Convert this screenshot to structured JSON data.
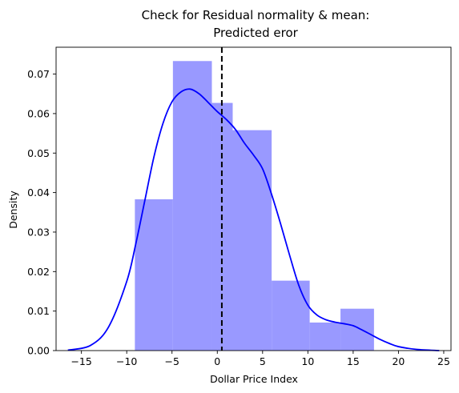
{
  "chart_data": {
    "type": "bar",
    "title": "Check for Residual normality & mean:",
    "subtitle": "Predicted eror",
    "xlabel": "Dollar Price Index",
    "ylabel": "Density",
    "xlim": [
      -17.8,
      25.8
    ],
    "ylim": [
      0,
      0.0768
    ],
    "xticks": [
      -15,
      -10,
      -5,
      0,
      5,
      10,
      15,
      20,
      25
    ],
    "xtick_labels": [
      "−15",
      "−10",
      "−5",
      "0",
      "5",
      "10",
      "15",
      "20",
      "25"
    ],
    "yticks": [
      0.0,
      0.01,
      0.02,
      0.03,
      0.04,
      0.05,
      0.06,
      0.07
    ],
    "ytick_labels": [
      "0.00",
      "0.01",
      "0.02",
      "0.03",
      "0.04",
      "0.05",
      "0.06",
      "0.07"
    ],
    "histogram": {
      "color": "#9999ff",
      "bins": [
        {
          "start": -9.1,
          "end": -4.9,
          "density": 0.0383
        },
        {
          "start": -4.9,
          "end": -0.6,
          "density": 0.0733
        },
        {
          "start": -0.6,
          "end": 1.7,
          "density": 0.0627
        },
        {
          "start": 1.7,
          "end": 6.0,
          "density": 0.0558
        },
        {
          "start": 6.0,
          "end": 10.2,
          "density": 0.0177
        },
        {
          "start": 10.2,
          "end": 13.6,
          "density": 0.0071
        },
        {
          "start": 13.6,
          "end": 17.3,
          "density": 0.0106
        }
      ]
    },
    "kde": {
      "color": "#0000ff",
      "x": [
        -16.5,
        -14.0,
        -12.0,
        -10.0,
        -9.0,
        -8.0,
        -7.0,
        -6.0,
        -5.0,
        -4.0,
        -3.0,
        -2.0,
        -1.0,
        0.0,
        1.0,
        2.0,
        3.0,
        4.0,
        5.0,
        6.0,
        7.0,
        8.0,
        9.0,
        10.0,
        11.0,
        12.0,
        13.0,
        14.0,
        15.0,
        16.0,
        17.0,
        18.0,
        19.0,
        20.0,
        22.0,
        24.5
      ],
      "y": [
        0.0001,
        0.0013,
        0.006,
        0.0175,
        0.027,
        0.038,
        0.049,
        0.0575,
        0.063,
        0.0655,
        0.0662,
        0.065,
        0.0628,
        0.0605,
        0.0585,
        0.056,
        0.0525,
        0.0495,
        0.046,
        0.0395,
        0.032,
        0.024,
        0.0165,
        0.0115,
        0.009,
        0.0078,
        0.0072,
        0.0068,
        0.0063,
        0.0052,
        0.004,
        0.0028,
        0.0018,
        0.001,
        0.0003,
        0.0
      ]
    },
    "mean_line": {
      "x": 0.5,
      "style": "dashed",
      "color": "#000000"
    }
  }
}
